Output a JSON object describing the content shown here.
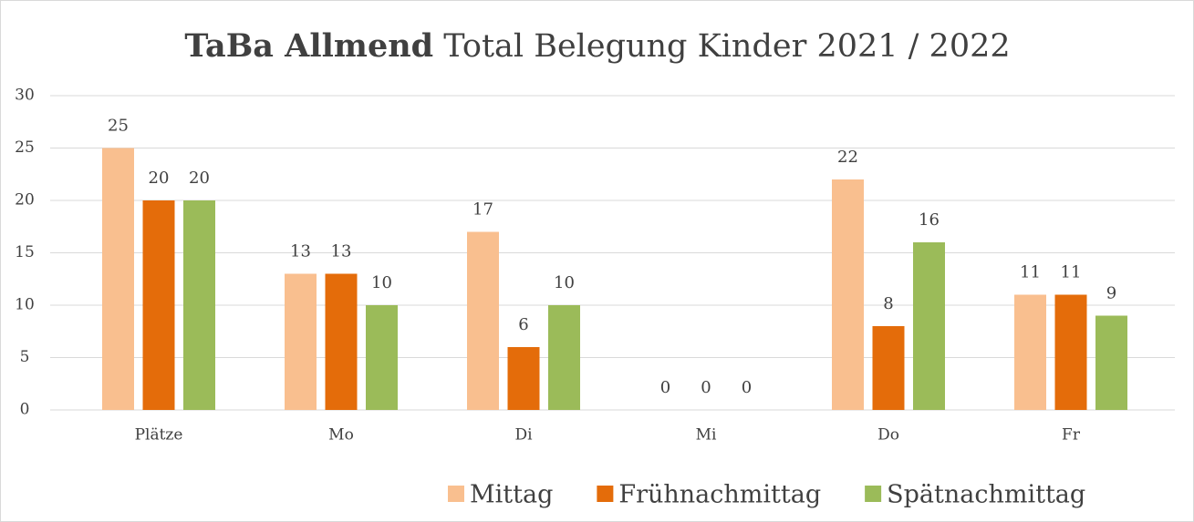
{
  "chart_data": {
    "type": "bar",
    "title": [
      "TaBa Allmend",
      "Total Belegung Kinder 2021 / 2022"
    ],
    "categories": [
      "Plätze",
      "Mo",
      "Di",
      "Mi",
      "Do",
      "Fr"
    ],
    "series": [
      {
        "name": "Mittag",
        "color": "#f9bf8f",
        "values": [
          25,
          13,
          17,
          0,
          22,
          11
        ]
      },
      {
        "name": "Frühnachmittag",
        "color": "#e46c0a",
        "values": [
          20,
          13,
          6,
          0,
          8,
          11
        ]
      },
      {
        "name": "Spätnachmittag",
        "color": "#9bbb59",
        "values": [
          20,
          10,
          10,
          0,
          16,
          9
        ]
      }
    ],
    "ylim": [
      0,
      30
    ],
    "yticks": [
      0,
      5,
      10,
      15,
      20,
      25,
      30
    ],
    "grid": true,
    "legend": "bottom"
  }
}
